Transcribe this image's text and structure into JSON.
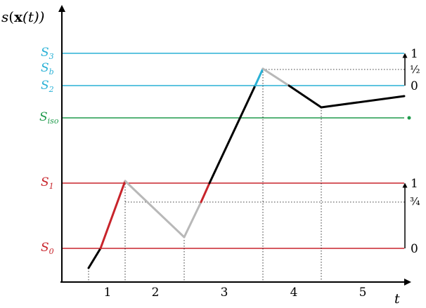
{
  "diagram": {
    "y_axis_label_main": "s",
    "y_axis_label_paren": "(",
    "y_axis_label_bold": "x",
    "y_axis_label_arg": "(t))",
    "x_axis_label": "t",
    "levels": [
      {
        "name": "S",
        "sub": "3",
        "color": "#2ab1d6"
      },
      {
        "name": "S",
        "sub": "b",
        "color": "#2ab1d6"
      },
      {
        "name": "S",
        "sub": "2",
        "color": "#2ab1d6"
      },
      {
        "name": "S",
        "sub": "iso",
        "color": "#1e9a4b"
      },
      {
        "name": "S",
        "sub": "1",
        "color": "#c8242b"
      },
      {
        "name": "S",
        "sub": "0",
        "color": "#c8242b"
      }
    ],
    "right_scale_upper": {
      "top": "1",
      "mid": "½",
      "bottom": "0"
    },
    "right_scale_lower": {
      "top": "1",
      "mid": "¾",
      "bottom": "0"
    },
    "intervals": [
      "1",
      "2",
      "3",
      "4",
      "5"
    ]
  }
}
